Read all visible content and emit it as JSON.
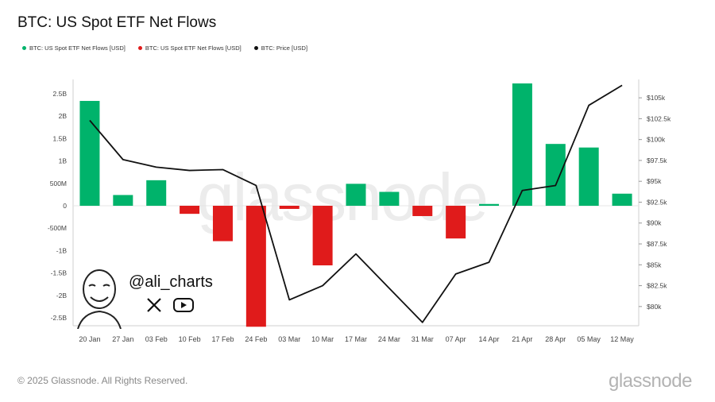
{
  "title": "BTC: US Spot ETF Net Flows",
  "legend": [
    {
      "label": "BTC: US Spot ETF Net Flows [USD]",
      "color": "#00b36b"
    },
    {
      "label": "BTC: US Spot ETF Net Flows [USD]",
      "color": "#e01b1b"
    },
    {
      "label": "BTC: Price [USD]",
      "color": "#111111"
    }
  ],
  "watermark": "glassnode",
  "overlay": {
    "handle": "@ali_charts",
    "icons": [
      "x-logo-icon",
      "youtube-icon",
      "avatar-icon"
    ]
  },
  "footer": {
    "copyright": "© 2025 Glassnode. All Rights Reserved.",
    "brand": "glassnode"
  },
  "chart_data": {
    "type": "bar",
    "categories": [
      "20 Jan",
      "27 Jan",
      "03 Feb",
      "10 Feb",
      "17 Feb",
      "24 Feb",
      "03 Mar",
      "10 Mar",
      "17 Mar",
      "24 Mar",
      "31 Mar",
      "07 Apr",
      "14 Apr",
      "21 Apr",
      "28 Apr",
      "05 May",
      "12 May"
    ],
    "series": [
      {
        "name": "BTC: US Spot ETF Net Flows [USD]",
        "axis": "left",
        "unit": "USD",
        "values": [
          2340000000,
          240000000,
          570000000,
          -180000000,
          -790000000,
          -2700000000,
          -70000000,
          -1330000000,
          490000000,
          310000000,
          -230000000,
          -730000000,
          40000000,
          2730000000,
          1380000000,
          1300000000,
          270000000
        ],
        "positive_color": "#00b36b",
        "negative_color": "#e01b1b"
      },
      {
        "name": "BTC: Price [USD]",
        "axis": "right",
        "type": "line",
        "color": "#111111",
        "values": [
          102300,
          97600,
          96700,
          96300,
          96400,
          94500,
          80800,
          82500,
          86300,
          82200,
          78100,
          83900,
          85300,
          93900,
          94500,
          104100,
          106500
        ]
      }
    ],
    "left_axis": {
      "ticks": [
        2500000000,
        2000000000,
        1500000000,
        1000000000,
        500000000,
        0,
        -500000000,
        -1000000000,
        -1500000000,
        -2000000000,
        -2500000000
      ],
      "tick_labels": [
        "2.5B",
        "2B",
        "1.5B",
        "1B",
        "500M",
        "0",
        "-500M",
        "-1B",
        "-1.5B",
        "-2B",
        "-2.5B"
      ],
      "ylim": [
        -2700000000,
        2700000000
      ]
    },
    "right_axis": {
      "ticks": [
        105000,
        102500,
        100000,
        97500,
        95000,
        92500,
        90000,
        87500,
        85000,
        82500,
        80000
      ],
      "tick_labels": [
        "$105k",
        "$102.5k",
        "$100k",
        "$97.5k",
        "$95k",
        "$92.5k",
        "$90k",
        "$87.5k",
        "$85k",
        "$82.5k",
        "$80k"
      ],
      "ylim": [
        77700,
        107200
      ]
    },
    "grid": false
  }
}
